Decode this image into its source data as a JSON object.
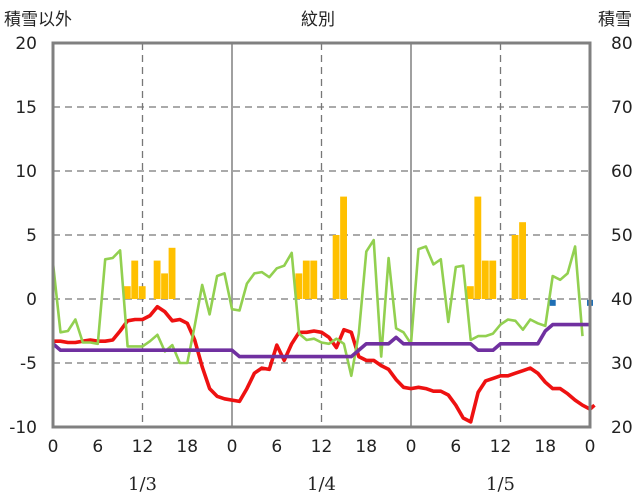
{
  "chart_data": {
    "type": "bar+line",
    "title": "紋別",
    "left_axis_label": "積雪以外",
    "right_axis_label": "積雪",
    "left_ylim": [
      -10,
      20
    ],
    "left_ticks": [
      "-10",
      "-5",
      "0",
      "5",
      "10",
      "15",
      "20"
    ],
    "right_ylim": [
      20,
      80
    ],
    "right_ticks": [
      "20",
      "30",
      "40",
      "50",
      "60",
      "70",
      "80"
    ],
    "x_range_hours": [
      0,
      72
    ],
    "x_tick_labels": [
      "0",
      "6",
      "12",
      "18",
      "0",
      "6",
      "12",
      "18",
      "0",
      "6",
      "12",
      "18",
      "0"
    ],
    "date_labels": [
      {
        "hour": 12,
        "label": "1/3"
      },
      {
        "hour": 36,
        "label": "1/4"
      },
      {
        "hour": 60,
        "label": "1/5"
      }
    ],
    "day_boundaries_hours": [
      24,
      48
    ],
    "grid_hours": [
      12,
      36,
      60
    ],
    "grid": true,
    "colors": {
      "precip_bars": "#ffc000",
      "temperature": "#ee1111",
      "wind": "#92d050",
      "snow_depth": "#7030a0",
      "snowfall_markers": "#1f6fb5",
      "frame": "#808080"
    },
    "series": [
      {
        "kind": "bar",
        "axis": "left",
        "color": "#ffc000",
        "points": [
          [
            10,
            1
          ],
          [
            11,
            3
          ],
          [
            12,
            1
          ],
          [
            14,
            3
          ],
          [
            15,
            2
          ],
          [
            16,
            4
          ],
          [
            33,
            2
          ],
          [
            34,
            3
          ],
          [
            35,
            3
          ],
          [
            38,
            5
          ],
          [
            39,
            8
          ],
          [
            56,
            1
          ],
          [
            57,
            8
          ],
          [
            58,
            3
          ],
          [
            59,
            3
          ],
          [
            62,
            5
          ],
          [
            63,
            6
          ]
        ]
      },
      {
        "kind": "line",
        "axis": "left",
        "color": "#ee1111",
        "points": [
          [
            0,
            -3.3
          ],
          [
            1,
            -3.3
          ],
          [
            2,
            -3.4
          ],
          [
            3,
            -3.4
          ],
          [
            4,
            -3.3
          ],
          [
            5,
            -3.2
          ],
          [
            6,
            -3.3
          ],
          [
            7,
            -3.3
          ],
          [
            8,
            -3.2
          ],
          [
            9,
            -2.5
          ],
          [
            10,
            -1.7
          ],
          [
            11,
            -1.6
          ],
          [
            12,
            -1.6
          ],
          [
            13,
            -1.3
          ],
          [
            14,
            -0.6
          ],
          [
            15,
            -1.0
          ],
          [
            16,
            -1.7
          ],
          [
            17,
            -1.6
          ],
          [
            18,
            -1.9
          ],
          [
            19,
            -3.2
          ],
          [
            20,
            -5.3
          ],
          [
            21,
            -7.0
          ],
          [
            22,
            -7.6
          ],
          [
            23,
            -7.8
          ],
          [
            24,
            -7.9
          ],
          [
            25,
            -8.0
          ],
          [
            26,
            -7.0
          ],
          [
            27,
            -5.8
          ],
          [
            28,
            -5.4
          ],
          [
            29,
            -5.5
          ],
          [
            30,
            -3.6
          ],
          [
            31,
            -4.8
          ],
          [
            32,
            -3.5
          ],
          [
            33,
            -2.6
          ],
          [
            34,
            -2.6
          ],
          [
            35,
            -2.5
          ],
          [
            36,
            -2.6
          ],
          [
            37,
            -3.0
          ],
          [
            38,
            -3.8
          ],
          [
            39,
            -2.4
          ],
          [
            40,
            -2.6
          ],
          [
            41,
            -4.5
          ],
          [
            42,
            -4.8
          ],
          [
            43,
            -4.8
          ],
          [
            44,
            -5.2
          ],
          [
            45,
            -5.5
          ],
          [
            46,
            -6.3
          ],
          [
            47,
            -6.9
          ],
          [
            48,
            -7.0
          ],
          [
            49,
            -6.9
          ],
          [
            50,
            -7.0
          ],
          [
            51,
            -7.2
          ],
          [
            52,
            -7.2
          ],
          [
            53,
            -7.5
          ],
          [
            54,
            -8.3
          ],
          [
            55,
            -9.3
          ],
          [
            56,
            -9.6
          ],
          [
            57,
            -7.3
          ],
          [
            58,
            -6.4
          ],
          [
            59,
            -6.2
          ],
          [
            60,
            -6.0
          ],
          [
            61,
            -6.0
          ],
          [
            62,
            -5.8
          ],
          [
            63,
            -5.6
          ],
          [
            64,
            -5.4
          ],
          [
            65,
            -5.8
          ],
          [
            66,
            -6.5
          ],
          [
            67,
            -7.0
          ],
          [
            68,
            -7.0
          ],
          [
            69,
            -7.4
          ],
          [
            70,
            -7.9
          ],
          [
            71,
            -8.3
          ],
          [
            72,
            -8.6
          ],
          [
            73,
            -8.3
          ],
          [
            74,
            -8.3
          ]
        ]
      },
      {
        "kind": "line",
        "axis": "left",
        "color": "#92d050",
        "points": [
          [
            0,
            2.8
          ],
          [
            1,
            -2.6
          ],
          [
            2,
            -2.5
          ],
          [
            3,
            -1.6
          ],
          [
            4,
            -3.4
          ],
          [
            5,
            -3.4
          ],
          [
            6,
            -3.5
          ],
          [
            7,
            3.1
          ],
          [
            8,
            3.2
          ],
          [
            9,
            3.8
          ],
          [
            10,
            -3.7
          ],
          [
            11,
            -3.7
          ],
          [
            12,
            -3.7
          ],
          [
            13,
            -3.3
          ],
          [
            14,
            -2.8
          ],
          [
            15,
            -4.1
          ],
          [
            16,
            -3.6
          ],
          [
            17,
            -5.0
          ],
          [
            18,
            -5.0
          ],
          [
            19,
            -2.1
          ],
          [
            20,
            1.1
          ],
          [
            21,
            -1.2
          ],
          [
            22,
            1.8
          ],
          [
            23,
            2.0
          ],
          [
            24,
            -0.8
          ],
          [
            25,
            -0.9
          ],
          [
            26,
            1.2
          ],
          [
            27,
            2.0
          ],
          [
            28,
            2.1
          ],
          [
            29,
            1.7
          ],
          [
            30,
            2.4
          ],
          [
            31,
            2.6
          ],
          [
            32,
            3.6
          ],
          [
            33,
            -2.7
          ],
          [
            34,
            -3.2
          ],
          [
            35,
            -3.1
          ],
          [
            36,
            -3.4
          ],
          [
            37,
            -3.5
          ],
          [
            38,
            -3.1
          ],
          [
            39,
            -3.5
          ],
          [
            40,
            -6.0
          ],
          [
            41,
            -2.7
          ],
          [
            42,
            3.7
          ],
          [
            43,
            4.6
          ],
          [
            44,
            -4.5
          ],
          [
            45,
            3.2
          ],
          [
            46,
            -2.3
          ],
          [
            47,
            -2.6
          ],
          [
            48,
            -3.5
          ],
          [
            49,
            3.9
          ],
          [
            50,
            4.1
          ],
          [
            51,
            2.7
          ],
          [
            52,
            3.1
          ],
          [
            53,
            -1.8
          ],
          [
            54,
            2.5
          ],
          [
            55,
            2.6
          ],
          [
            56,
            -3.2
          ],
          [
            57,
            -2.9
          ],
          [
            58,
            -2.9
          ],
          [
            59,
            -2.7
          ],
          [
            60,
            -2.0
          ],
          [
            61,
            -1.6
          ],
          [
            62,
            -1.7
          ],
          [
            63,
            -2.4
          ],
          [
            64,
            -1.6
          ],
          [
            65,
            -1.9
          ],
          [
            66,
            -2.1
          ],
          [
            67,
            1.8
          ],
          [
            68,
            1.5
          ],
          [
            69,
            2.0
          ],
          [
            70,
            4.1
          ],
          [
            71,
            -2.9
          ]
        ]
      },
      {
        "kind": "line",
        "axis": "right",
        "color": "#7030a0",
        "points": [
          [
            0,
            33
          ],
          [
            1,
            32
          ],
          [
            10,
            32
          ],
          [
            24,
            32
          ],
          [
            25,
            31
          ],
          [
            40,
            31
          ],
          [
            42,
            33
          ],
          [
            45,
            33
          ],
          [
            46,
            34
          ],
          [
            47,
            33
          ],
          [
            56,
            33
          ],
          [
            57,
            32
          ],
          [
            59,
            32
          ],
          [
            60,
            33
          ],
          [
            65,
            33
          ],
          [
            66,
            35
          ],
          [
            67,
            36
          ],
          [
            72,
            36
          ]
        ]
      },
      {
        "kind": "marker",
        "axis": "left",
        "color": "#1f6fb5",
        "points": [
          [
            67,
            -0.3
          ],
          [
            72,
            -0.3
          ]
        ]
      }
    ]
  }
}
